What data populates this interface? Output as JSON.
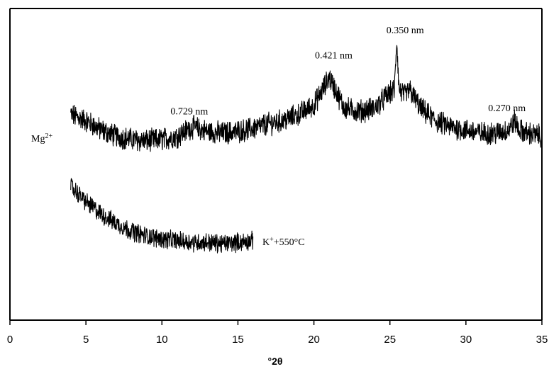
{
  "chart_data": {
    "type": "line",
    "title": "",
    "xlabel": "°2θ",
    "ylabel": "",
    "xlim": [
      0,
      35
    ],
    "ylim": [
      0,
      100
    ],
    "x_ticks": [
      "0",
      "5",
      "10",
      "15",
      "20",
      "25",
      "30",
      "35"
    ],
    "grid": false,
    "series": [
      {
        "name": "Mg²⁺",
        "label_main": "Mg",
        "label_sup": "2+",
        "x_range": [
          4,
          35
        ],
        "baseline": [
          [
            4,
            66
          ],
          [
            5,
            64
          ],
          [
            6,
            61
          ],
          [
            7,
            59
          ],
          [
            8,
            58
          ],
          [
            9,
            57.5
          ],
          [
            10,
            58
          ],
          [
            11,
            59
          ],
          [
            12,
            62
          ],
          [
            13,
            60.5
          ],
          [
            14,
            60
          ],
          [
            15,
            60.5
          ],
          [
            16,
            61.5
          ],
          [
            17,
            63
          ],
          [
            18,
            64
          ],
          [
            19,
            66
          ],
          [
            20,
            69
          ],
          [
            20.7,
            75
          ],
          [
            21,
            78
          ],
          [
            21.4,
            74
          ],
          [
            22,
            68
          ],
          [
            23,
            67
          ],
          [
            24,
            68
          ],
          [
            24.8,
            72
          ],
          [
            25.3,
            74
          ],
          [
            25.45,
            90
          ],
          [
            25.6,
            74
          ],
          [
            26,
            72
          ],
          [
            26.3,
            74
          ],
          [
            27,
            68
          ],
          [
            28,
            64
          ],
          [
            29,
            62
          ],
          [
            30,
            61
          ],
          [
            31,
            60
          ],
          [
            32,
            60
          ],
          [
            32.8,
            61
          ],
          [
            33.2,
            64
          ],
          [
            33.5,
            61
          ],
          [
            34,
            60
          ],
          [
            35,
            59
          ]
        ]
      },
      {
        "name": "K⁺+550°C",
        "label_main": "K",
        "label_sup": "+",
        "label_suffix": "+550°C",
        "x_range": [
          4,
          16
        ],
        "baseline": [
          [
            4,
            43
          ],
          [
            5,
            38
          ],
          [
            6,
            34
          ],
          [
            7,
            31
          ],
          [
            8,
            28.5
          ],
          [
            9,
            27
          ],
          [
            10,
            26
          ],
          [
            11,
            25.5
          ],
          [
            12,
            25
          ],
          [
            13,
            25
          ],
          [
            14,
            24.5
          ],
          [
            15,
            25
          ],
          [
            16,
            25.5
          ]
        ]
      }
    ],
    "annotations": [
      {
        "text": "0.729 nm",
        "x": 11.8,
        "y": 66
      },
      {
        "text": "0.421 nm",
        "x": 21.3,
        "y": 84
      },
      {
        "text": "0.350 nm",
        "x": 26.0,
        "y": 92
      },
      {
        "text": "0.270 nm",
        "x": 32.7,
        "y": 67
      }
    ]
  }
}
